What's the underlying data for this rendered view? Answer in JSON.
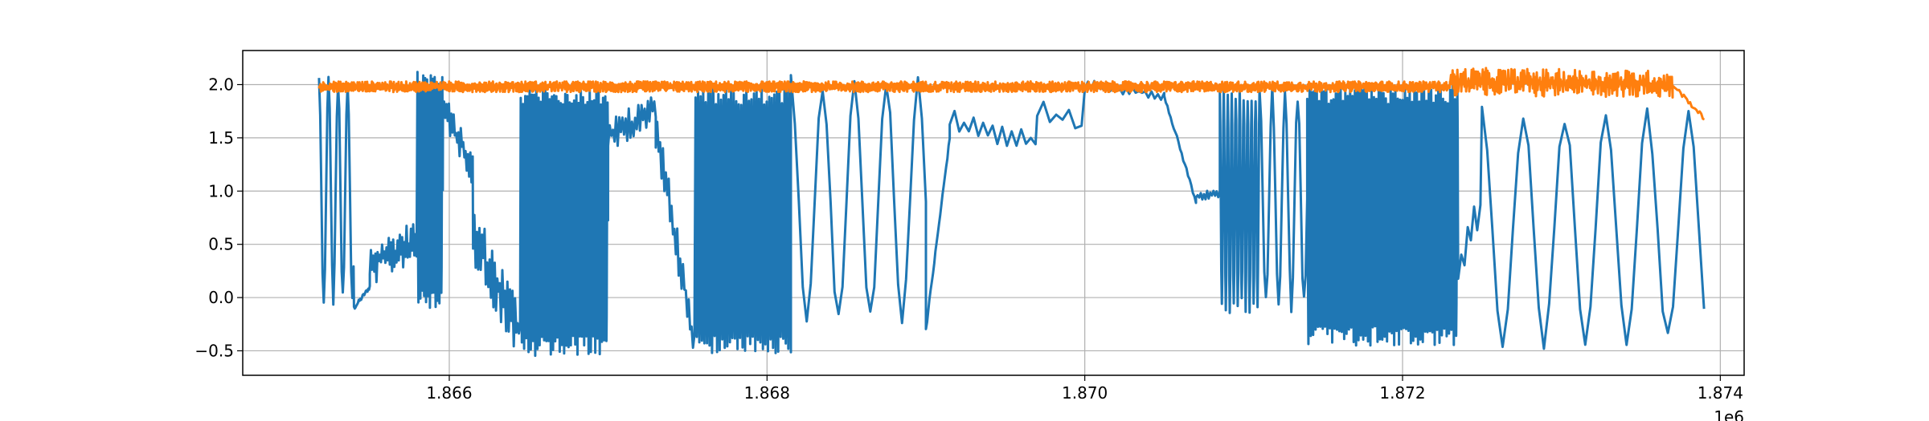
{
  "chart_data": {
    "type": "line",
    "title": "",
    "xlabel": "",
    "ylabel": "",
    "x_offset_label": "1e6",
    "xlim": [
      1864700,
      1874150
    ],
    "ylim": [
      -0.73,
      2.32
    ],
    "x_ticks": [
      1866000,
      1868000,
      1870000,
      1872000,
      1874000
    ],
    "x_tick_labels": [
      "1.866",
      "1.868",
      "1.870",
      "1.872",
      "1.874"
    ],
    "y_ticks": [
      -0.5,
      0.0,
      0.5,
      1.0,
      1.5,
      2.0
    ],
    "y_tick_labels": [
      "−0.5",
      "0.0",
      "0.5",
      "1.0",
      "1.5",
      "2.0"
    ],
    "grid": true,
    "legend": "none",
    "series": [
      {
        "color": "#1f77b4",
        "segments": [
          {
            "x_start": 1865180,
            "x_end": 1865400,
            "kind": "osc",
            "period": 60,
            "low": -0.1,
            "high": 2.12
          },
          {
            "x_start": 1865400,
            "x_end": 1865500,
            "kind": "ramp",
            "from": -0.1,
            "to": 0.1
          },
          {
            "x_start": 1865500,
            "x_end": 1865800,
            "kind": "noisy",
            "base": 0.3,
            "base_end": 0.55,
            "amp": 0.2,
            "period": 14
          },
          {
            "x_start": 1865800,
            "x_end": 1865960,
            "kind": "osc",
            "period": 12,
            "low": -0.1,
            "high": 2.12
          },
          {
            "x_start": 1865960,
            "x_end": 1866150,
            "kind": "noisy",
            "base": 1.8,
            "base_end": 1.2,
            "amp": 0.15,
            "period": 15
          },
          {
            "x_start": 1866150,
            "x_end": 1866450,
            "kind": "noisy",
            "base": 0.6,
            "base_end": -0.35,
            "amp": 0.3,
            "period": 16
          },
          {
            "x_start": 1866450,
            "x_end": 1867000,
            "kind": "osc",
            "period": 14,
            "low": -0.55,
            "high": 2.0
          },
          {
            "x_start": 1867000,
            "x_end": 1867300,
            "kind": "noisy",
            "base": 1.5,
            "base_end": 1.8,
            "amp": 0.15,
            "period": 20
          },
          {
            "x_start": 1867300,
            "x_end": 1867550,
            "kind": "noisy",
            "base": 1.6,
            "base_end": -0.5,
            "amp": 0.2,
            "period": 18
          },
          {
            "x_start": 1867550,
            "x_end": 1868150,
            "kind": "osc",
            "period": 16,
            "low": -0.55,
            "high": 2.0
          },
          {
            "x_start": 1868150,
            "x_end": 1869000,
            "kind": "osc",
            "period": 200,
            "low": -0.3,
            "high": 2.1
          },
          {
            "x_start": 1869000,
            "x_end": 1869150,
            "kind": "ramp",
            "from": -0.3,
            "to": 1.5
          },
          {
            "x_start": 1869150,
            "x_end": 1869700,
            "kind": "noisy",
            "base": 1.65,
            "base_end": 1.45,
            "amp": 0.12,
            "period": 60
          },
          {
            "x_start": 1869700,
            "x_end": 1870000,
            "kind": "noisy",
            "base": 1.75,
            "base_end": 1.6,
            "amp": 0.12,
            "period": 80
          },
          {
            "x_start": 1870000,
            "x_end": 1870500,
            "kind": "noisy",
            "base": 2.0,
            "base_end": 1.9,
            "amp": 0.05,
            "period": 40
          },
          {
            "x_start": 1870500,
            "x_end": 1870700,
            "kind": "ramp",
            "from": 1.9,
            "to": 0.9
          },
          {
            "x_start": 1870700,
            "x_end": 1870850,
            "kind": "noisy",
            "base": 0.95,
            "base_end": 0.98,
            "amp": 0.04,
            "period": 20
          },
          {
            "x_start": 1870850,
            "x_end": 1871100,
            "kind": "osc",
            "period": 25,
            "low": -0.15,
            "high": 2.0
          },
          {
            "x_start": 1871100,
            "x_end": 1871400,
            "kind": "osc",
            "period": 80,
            "low": -0.15,
            "high": 2.0
          },
          {
            "x_start": 1871400,
            "x_end": 1872350,
            "kind": "osc",
            "period": 15,
            "low": -0.45,
            "high": 2.0
          },
          {
            "x_start": 1872350,
            "x_end": 1872500,
            "kind": "noisy",
            "base": 0.3,
            "base_end": 0.85,
            "amp": 0.2,
            "period": 40
          },
          {
            "x_start": 1872500,
            "x_end": 1873900,
            "kind": "osc",
            "period": 260,
            "low": -0.5,
            "high": 1.8
          }
        ]
      },
      {
        "color": "#ff7f0e",
        "segments": [
          {
            "x_start": 1865180,
            "x_end": 1872300,
            "kind": "noisy",
            "base": 1.98,
            "base_end": 1.98,
            "amp": 0.05,
            "period": 6
          },
          {
            "x_start": 1872300,
            "x_end": 1873700,
            "kind": "noisy",
            "base": 2.03,
            "base_end": 2.0,
            "amp": 0.13,
            "period": 10
          },
          {
            "x_start": 1873700,
            "x_end": 1873900,
            "kind": "ramp",
            "from": 2.0,
            "to": 1.68
          }
        ]
      }
    ]
  }
}
